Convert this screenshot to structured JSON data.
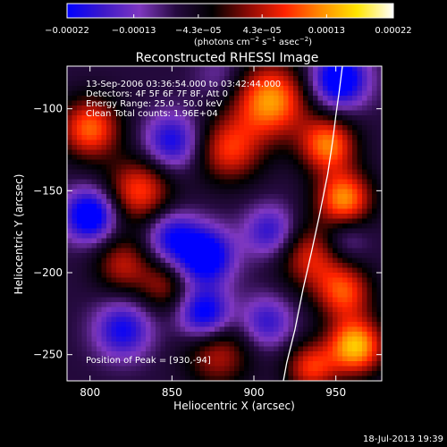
{
  "chart_data": {
    "type": "heatmap",
    "title": "Reconstructed RHESSI Image",
    "xlabel": "Heliocentric X (arcsec)",
    "ylabel": "Heliocentric Y (arcsec)",
    "xlim": [
      786,
      978
    ],
    "ylim": [
      -266,
      -74
    ],
    "xticks": [
      800,
      850,
      900,
      950
    ],
    "yticks": [
      -100,
      -150,
      -200,
      -250
    ],
    "ytick_labels": [
      "−100",
      "−150",
      "−200",
      "−250"
    ],
    "colorbar": {
      "range": [
        -0.00022,
        0.00022
      ],
      "tick_values": [
        -0.00022,
        -0.00013,
        -4.3e-05,
        4.3e-05,
        0.00013,
        0.00022
      ],
      "tick_labels": [
        "−0.00022",
        "−0.00013",
        "−4.3e−05",
        "4.3e−05",
        "0.00013",
        "0.00022"
      ],
      "units_main": "(photons cm",
      "units_sup1": "−2",
      "units_s": " s",
      "units_sup2": "−1",
      "units_asec": " asec",
      "units_sup3": "−2",
      "units_close": ")",
      "colormap": [
        "#0000ff",
        "#3d19c8",
        "#7e37c0",
        "#260a40",
        "#000000",
        "#8b0a05",
        "#ff2200",
        "#ff8c00",
        "#ffe600",
        "#ffffff"
      ]
    },
    "info_lines": [
      "13-Sep-2006 03:36:54.000 to 03:42:44.000",
      "Detectors: 4F 5F 6F 7F 8F, Att 0",
      "Energy Range: 25.0 - 50.0 keV",
      "Clean    Total counts: 1.96E+04"
    ],
    "peak_annotation": "Position of Peak = [930,-94]",
    "limb_curve": {
      "x": [
        918,
        920,
        925,
        930,
        935,
        940,
        945,
        948,
        950,
        952,
        954
      ],
      "y": [
        -266,
        -255,
        -235,
        -210,
        -188,
        -165,
        -140,
        -120,
        -104,
        -90,
        -74
      ]
    },
    "intensity_blobs": [
      {
        "x": 952,
        "y": -82,
        "value": -0.00022,
        "spread": 12
      },
      {
        "x": 910,
        "y": -95,
        "value": 0.00018,
        "spread": 16
      },
      {
        "x": 945,
        "y": -122,
        "value": 0.00016,
        "spread": 12
      },
      {
        "x": 955,
        "y": -155,
        "value": 0.00017,
        "spread": 12
      },
      {
        "x": 800,
        "y": -112,
        "value": 0.00015,
        "spread": 13
      },
      {
        "x": 885,
        "y": -125,
        "value": 0.00012,
        "spread": 14
      },
      {
        "x": 830,
        "y": -150,
        "value": 0.00013,
        "spread": 14
      },
      {
        "x": 850,
        "y": -120,
        "value": -0.00016,
        "spread": 12
      },
      {
        "x": 800,
        "y": -165,
        "value": -0.00022,
        "spread": 11
      },
      {
        "x": 870,
        "y": -190,
        "value": -0.00022,
        "spread": 12
      },
      {
        "x": 850,
        "y": -178,
        "value": -0.00015,
        "spread": 11
      },
      {
        "x": 910,
        "y": -175,
        "value": -0.00014,
        "spread": 11
      },
      {
        "x": 935,
        "y": -190,
        "value": 0.00011,
        "spread": 14
      },
      {
        "x": 820,
        "y": -235,
        "value": -0.00016,
        "spread": 12
      },
      {
        "x": 870,
        "y": -225,
        "value": -0.00019,
        "spread": 11
      },
      {
        "x": 908,
        "y": -230,
        "value": -0.00013,
        "spread": 11
      },
      {
        "x": 955,
        "y": -212,
        "value": 0.00013,
        "spread": 12
      },
      {
        "x": 962,
        "y": -245,
        "value": 0.0002,
        "spread": 12
      },
      {
        "x": 935,
        "y": -258,
        "value": 0.00012,
        "spread": 11
      },
      {
        "x": 878,
        "y": -250,
        "value": 9e-05,
        "spread": 14
      },
      {
        "x": 880,
        "y": -80,
        "value": -7e-05,
        "spread": 11
      },
      {
        "x": 845,
        "y": -208,
        "value": 7e-05,
        "spread": 11
      },
      {
        "x": 955,
        "y": -180,
        "value": -9e-05,
        "spread": 10
      },
      {
        "x": 820,
        "y": -195,
        "value": 9e-05,
        "spread": 12
      }
    ]
  },
  "footer": {
    "timestamp": "18-Jul-2013 19:39"
  }
}
